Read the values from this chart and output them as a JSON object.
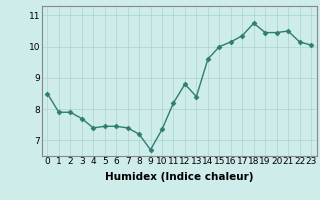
{
  "x": [
    0,
    1,
    2,
    3,
    4,
    5,
    6,
    7,
    8,
    9,
    10,
    11,
    12,
    13,
    14,
    15,
    16,
    17,
    18,
    19,
    20,
    21,
    22,
    23
  ],
  "y": [
    8.5,
    7.9,
    7.9,
    7.7,
    7.4,
    7.45,
    7.45,
    7.4,
    7.2,
    6.7,
    7.35,
    8.2,
    8.8,
    8.4,
    9.6,
    10.0,
    10.15,
    10.35,
    10.75,
    10.45,
    10.45,
    10.5,
    10.15,
    10.05
  ],
  "line_color": "#2e7d72",
  "marker": "D",
  "markersize": 2.5,
  "linewidth": 1.0,
  "xlabel": "Humidex (Indice chaleur)",
  "bg_color": "#ceecea",
  "grid_color": "#afd8d5",
  "ylim": [
    6.5,
    11.3
  ],
  "xlim": [
    -0.5,
    23.5
  ],
  "yticks": [
    7,
    8,
    9,
    10,
    11
  ],
  "xticks": [
    0,
    1,
    2,
    3,
    4,
    5,
    6,
    7,
    8,
    9,
    10,
    11,
    12,
    13,
    14,
    15,
    16,
    17,
    18,
    19,
    20,
    21,
    22,
    23
  ],
  "tick_fontsize": 6.5,
  "xlabel_fontsize": 7.5,
  "spine_color": "#888888"
}
